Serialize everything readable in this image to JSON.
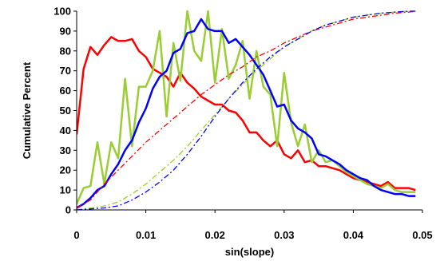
{
  "chart_data": {
    "type": "line",
    "xlabel": "sin(slope)",
    "ylabel": "Cumulative Percent",
    "xlim": [
      0,
      0.05
    ],
    "ylim": [
      0,
      100
    ],
    "xticks": [
      0,
      0.01,
      0.02,
      0.03,
      0.04,
      0.05
    ],
    "xtick_labels": [
      "0",
      "0.01",
      "0.02",
      "0.03",
      "0.04",
      "0.05"
    ],
    "yticks": [
      0,
      10,
      20,
      30,
      40,
      50,
      60,
      70,
      80,
      90,
      100
    ],
    "ytick_labels": [
      "0",
      "10",
      "20",
      "30",
      "40",
      "50",
      "60",
      "70",
      "80",
      "90",
      "100"
    ],
    "grid": false,
    "legend": "none",
    "series": [
      {
        "color": "#ff0000",
        "style": "solid",
        "x": [
          0,
          0.001,
          0.002,
          0.003,
          0.004,
          0.005,
          0.006,
          0.007,
          0.008,
          0.009,
          0.01,
          0.011,
          0.012,
          0.013,
          0.014,
          0.015,
          0.016,
          0.017,
          0.018,
          0.019,
          0.02,
          0.021,
          0.022,
          0.023,
          0.024,
          0.025,
          0.026,
          0.027,
          0.028,
          0.029,
          0.03,
          0.031,
          0.032,
          0.033,
          0.034,
          0.035,
          0.036,
          0.037,
          0.038,
          0.039,
          0.04,
          0.041,
          0.042,
          0.043,
          0.044,
          0.045,
          0.046,
          0.047,
          0.048,
          0.049
        ],
        "y": [
          38,
          71,
          82,
          78,
          83,
          87,
          85,
          85,
          86,
          80,
          77,
          71,
          69,
          67,
          62,
          69,
          64,
          61,
          57,
          55,
          53,
          53,
          50,
          49,
          45,
          39,
          39,
          35,
          32,
          35,
          28,
          26,
          30,
          24,
          25,
          22,
          22,
          21,
          20,
          18,
          16,
          15,
          14,
          13,
          12,
          14,
          11,
          11,
          11,
          10
        ]
      },
      {
        "color": "#9acd32",
        "style": "solid",
        "x": [
          0,
          0.001,
          0.002,
          0.003,
          0.004,
          0.005,
          0.006,
          0.007,
          0.008,
          0.009,
          0.01,
          0.011,
          0.012,
          0.013,
          0.014,
          0.015,
          0.016,
          0.017,
          0.018,
          0.019,
          0.02,
          0.021,
          0.022,
          0.023,
          0.024,
          0.025,
          0.026,
          0.027,
          0.028,
          0.029,
          0.03,
          0.031,
          0.032,
          0.033,
          0.034,
          0.035,
          0.036,
          0.037,
          0.038,
          0.039,
          0.04,
          0.041,
          0.042,
          0.043,
          0.044,
          0.045,
          0.046,
          0.047,
          0.048,
          0.049
        ],
        "y": [
          3,
          11,
          12,
          34,
          13,
          34,
          26,
          66,
          32,
          62,
          62,
          70,
          90,
          47,
          84,
          65,
          101,
          80,
          75,
          105,
          64,
          91,
          66,
          73,
          85,
          56,
          80,
          62,
          58,
          32,
          69,
          44,
          32,
          43,
          24,
          30,
          24,
          25,
          22,
          19,
          17,
          15,
          13,
          12,
          11,
          13,
          10,
          9,
          9,
          9
        ]
      },
      {
        "color": "#0000ff",
        "style": "solid",
        "x": [
          0,
          0.001,
          0.002,
          0.003,
          0.004,
          0.005,
          0.006,
          0.007,
          0.008,
          0.009,
          0.01,
          0.011,
          0.012,
          0.013,
          0.014,
          0.015,
          0.016,
          0.017,
          0.018,
          0.019,
          0.02,
          0.021,
          0.022,
          0.023,
          0.024,
          0.025,
          0.026,
          0.027,
          0.028,
          0.029,
          0.03,
          0.031,
          0.032,
          0.033,
          0.034,
          0.035,
          0.036,
          0.037,
          0.038,
          0.039,
          0.04,
          0.041,
          0.042,
          0.043,
          0.044,
          0.045,
          0.046,
          0.047,
          0.048,
          0.049
        ],
        "y": [
          1,
          3,
          6,
          10,
          12,
          18,
          23,
          30,
          35,
          44,
          51,
          61,
          67,
          70,
          79,
          81,
          89,
          90,
          96,
          91,
          90,
          90,
          84,
          86,
          82,
          78,
          73,
          68,
          60,
          52,
          53,
          45,
          41,
          39,
          36,
          28,
          27,
          25,
          23,
          20,
          18,
          16,
          15,
          12,
          10,
          9,
          8,
          8,
          7,
          7
        ]
      },
      {
        "color": "#ff0000",
        "style": "dashdot",
        "x": [
          0,
          0.002,
          0.004,
          0.006,
          0.008,
          0.01,
          0.012,
          0.014,
          0.016,
          0.018,
          0.02,
          0.022,
          0.024,
          0.026,
          0.028,
          0.03,
          0.032,
          0.034,
          0.036,
          0.038,
          0.04,
          0.042,
          0.044,
          0.046,
          0.048,
          0.049
        ],
        "y": [
          1,
          5,
          13,
          20,
          27,
          34,
          40,
          46,
          52,
          58,
          63,
          68,
          72,
          77,
          80,
          84,
          87,
          90,
          92,
          94,
          96,
          97,
          98,
          99,
          99.5,
          100
        ]
      },
      {
        "color": "#9acd32",
        "style": "dashdot",
        "x": [
          0,
          0.002,
          0.004,
          0.006,
          0.008,
          0.01,
          0.012,
          0.014,
          0.016,
          0.018,
          0.02,
          0.022,
          0.024,
          0.026,
          0.028,
          0.03,
          0.032,
          0.034,
          0.036,
          0.038,
          0.04,
          0.042,
          0.044,
          0.046,
          0.048,
          0.049
        ],
        "y": [
          0,
          1,
          2,
          4,
          8,
          13,
          19,
          25,
          32,
          40,
          48,
          56,
          63,
          70,
          76,
          82,
          86,
          90,
          93,
          95,
          97,
          98,
          99,
          99.5,
          100,
          100
        ]
      },
      {
        "color": "#0000ff",
        "style": "dashdot",
        "x": [
          0,
          0.002,
          0.004,
          0.006,
          0.008,
          0.01,
          0.012,
          0.014,
          0.016,
          0.018,
          0.02,
          0.022,
          0.024,
          0.026,
          0.028,
          0.03,
          0.032,
          0.034,
          0.036,
          0.038,
          0.04,
          0.042,
          0.044,
          0.046,
          0.048,
          0.049
        ],
        "y": [
          0,
          0.5,
          1,
          2,
          5,
          9,
          14,
          20,
          28,
          37,
          47,
          56,
          64,
          71,
          77,
          82,
          86,
          90,
          93,
          95,
          97,
          98,
          99,
          99.5,
          100,
          100
        ]
      }
    ]
  }
}
